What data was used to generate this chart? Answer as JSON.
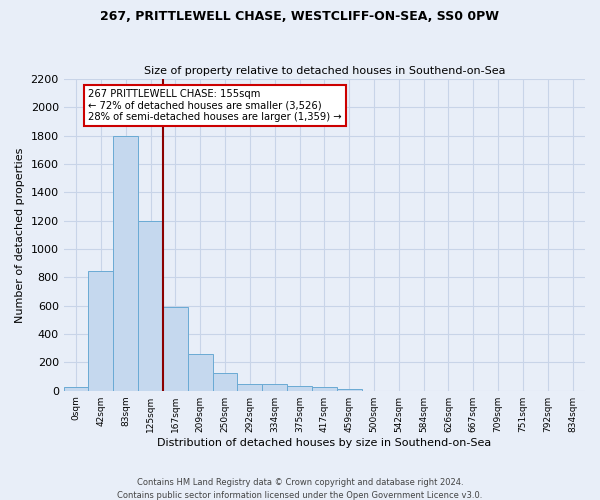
{
  "title1": "267, PRITTLEWELL CHASE, WESTCLIFF-ON-SEA, SS0 0PW",
  "title2": "Size of property relative to detached houses in Southend-on-Sea",
  "xlabel": "Distribution of detached houses by size in Southend-on-Sea",
  "ylabel": "Number of detached properties",
  "footer1": "Contains HM Land Registry data © Crown copyright and database right 2024.",
  "footer2": "Contains public sector information licensed under the Open Government Licence v3.0.",
  "bar_labels": [
    "0sqm",
    "42sqm",
    "83sqm",
    "125sqm",
    "167sqm",
    "209sqm",
    "250sqm",
    "292sqm",
    "334sqm",
    "375sqm",
    "417sqm",
    "459sqm",
    "500sqm",
    "542sqm",
    "584sqm",
    "626sqm",
    "667sqm",
    "709sqm",
    "751sqm",
    "792sqm",
    "834sqm"
  ],
  "bar_values": [
    25,
    845,
    1800,
    1200,
    590,
    260,
    125,
    48,
    45,
    32,
    25,
    10,
    0,
    0,
    0,
    0,
    0,
    0,
    0,
    0,
    0
  ],
  "bar_color": "#c5d8ee",
  "bar_edge_color": "#6aaad4",
  "grid_color": "#c8d4e8",
  "background_color": "#e8eef8",
  "vline_color": "#8b0000",
  "annotation_text": "267 PRITTLEWELL CHASE: 155sqm\n← 72% of detached houses are smaller (3,526)\n28% of semi-detached houses are larger (1,359) →",
  "annotation_box_color": "white",
  "annotation_box_edge_color": "#cc0000",
  "ylim": [
    0,
    2200
  ],
  "yticks": [
    0,
    200,
    400,
    600,
    800,
    1000,
    1200,
    1400,
    1600,
    1800,
    2000,
    2200
  ]
}
